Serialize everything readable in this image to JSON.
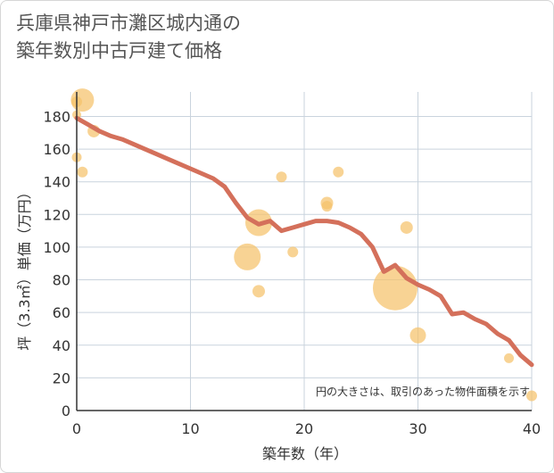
{
  "chart_data": {
    "type": "scatter",
    "title_lines": [
      "兵庫県神戸市灘区城内通の",
      "築年数別中古戸建て価格"
    ],
    "xlabel": "築年数（年）",
    "ylabel": "坪（3.3㎡）単価（万円）",
    "xlim": [
      0,
      40
    ],
    "ylim": [
      0,
      195
    ],
    "x_ticks": [
      0,
      10,
      20,
      30,
      40
    ],
    "y_ticks": [
      0,
      20,
      40,
      60,
      80,
      100,
      120,
      140,
      160,
      180
    ],
    "grid": true,
    "note": "円の大きさは、取引のあった物件面積を示す",
    "colors": {
      "bubble": "#f5c26b",
      "line": "#d4705b",
      "grid": "#c9d3dd",
      "axis": "#333333"
    },
    "bubbles": [
      {
        "x": 0,
        "y": 189,
        "size": 1.2
      },
      {
        "x": 0,
        "y": 181,
        "size": 1.0
      },
      {
        "x": 0,
        "y": 155,
        "size": 1.1
      },
      {
        "x": 0.5,
        "y": 190,
        "size": 2.6
      },
      {
        "x": 0.5,
        "y": 146,
        "size": 1.2
      },
      {
        "x": 1.5,
        "y": 171,
        "size": 1.4
      },
      {
        "x": 15,
        "y": 94,
        "size": 3.0
      },
      {
        "x": 16,
        "y": 115,
        "size": 3.0
      },
      {
        "x": 16,
        "y": 73,
        "size": 1.4
      },
      {
        "x": 18,
        "y": 143,
        "size": 1.2
      },
      {
        "x": 19,
        "y": 97,
        "size": 1.2
      },
      {
        "x": 22,
        "y": 127,
        "size": 1.4
      },
      {
        "x": 22,
        "y": 125,
        "size": 1.2
      },
      {
        "x": 23,
        "y": 146,
        "size": 1.2
      },
      {
        "x": 28,
        "y": 75,
        "size": 5.0
      },
      {
        "x": 29,
        "y": 112,
        "size": 1.4
      },
      {
        "x": 30,
        "y": 46,
        "size": 1.8
      },
      {
        "x": 38,
        "y": 32,
        "size": 1.1
      },
      {
        "x": 40,
        "y": 9,
        "size": 1.2
      }
    ],
    "line": {
      "x": [
        0,
        1,
        2,
        3,
        4,
        5,
        6,
        7,
        8,
        9,
        10,
        11,
        12,
        13,
        14,
        15,
        16,
        17,
        18,
        19,
        20,
        21,
        22,
        23,
        24,
        25,
        26,
        27,
        28,
        29,
        30,
        31,
        32,
        33,
        34,
        35,
        36,
        37,
        38,
        39,
        40
      ],
      "y": [
        179,
        175,
        171,
        168,
        166,
        163,
        160,
        157,
        154,
        151,
        148,
        145,
        142,
        137,
        127,
        118,
        114,
        116,
        110,
        112,
        114,
        116,
        116,
        115,
        112,
        108,
        100,
        85,
        89,
        81,
        77,
        74,
        70,
        59,
        60,
        56,
        53,
        47,
        43,
        34,
        28
      ]
    }
  }
}
